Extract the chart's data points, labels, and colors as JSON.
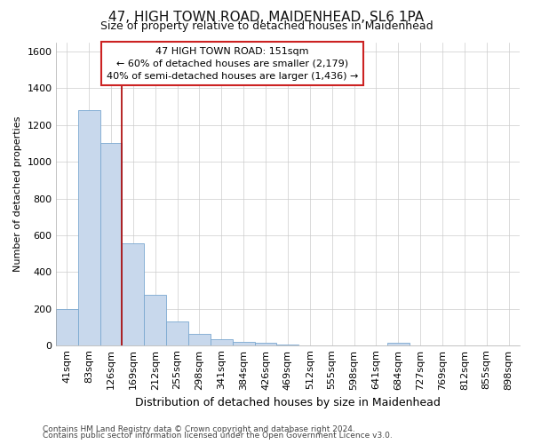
{
  "title_line1": "47, HIGH TOWN ROAD, MAIDENHEAD, SL6 1PA",
  "title_line2": "Size of property relative to detached houses in Maidenhead",
  "xlabel": "Distribution of detached houses by size in Maidenhead",
  "ylabel": "Number of detached properties",
  "categories": [
    "41sqm",
    "83sqm",
    "126sqm",
    "169sqm",
    "212sqm",
    "255sqm",
    "298sqm",
    "341sqm",
    "384sqm",
    "426sqm",
    "469sqm",
    "512sqm",
    "555sqm",
    "598sqm",
    "641sqm",
    "684sqm",
    "727sqm",
    "769sqm",
    "812sqm",
    "855sqm",
    "898sqm"
  ],
  "values": [
    200,
    1280,
    1100,
    555,
    275,
    130,
    65,
    35,
    20,
    15,
    5,
    3,
    2,
    2,
    1,
    15,
    0,
    0,
    0,
    0,
    0
  ],
  "bar_color": "#c8d8ec",
  "bar_edge_color": "#7aa8d0",
  "vline_x": 2.5,
  "vline_color": "#aa0000",
  "annotation_line1": "47 HIGH TOWN ROAD: 151sqm",
  "annotation_line2": "← 60% of detached houses are smaller (2,179)",
  "annotation_line3": "40% of semi-detached houses are larger (1,436) →",
  "annotation_box_facecolor": "#ffffff",
  "annotation_border_color": "#cc2222",
  "ylim": [
    0,
    1650
  ],
  "yticks": [
    0,
    200,
    400,
    600,
    800,
    1000,
    1200,
    1400,
    1600
  ],
  "footer_line1": "Contains HM Land Registry data © Crown copyright and database right 2024.",
  "footer_line2": "Contains public sector information licensed under the Open Government Licence v3.0.",
  "plot_bg_color": "#ffffff",
  "fig_bg_color": "#ffffff",
  "grid_color": "#cccccc",
  "title_fontsize": 11,
  "subtitle_fontsize": 9,
  "xlabel_fontsize": 9,
  "ylabel_fontsize": 8,
  "tick_fontsize": 8,
  "annotation_fontsize": 8,
  "footer_fontsize": 6.5
}
